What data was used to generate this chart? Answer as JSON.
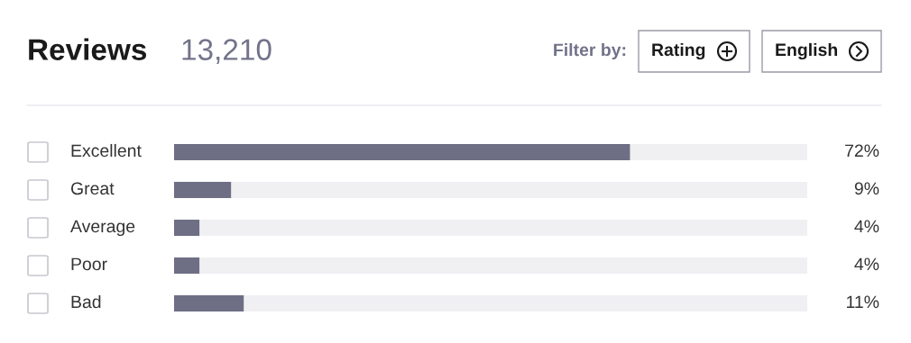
{
  "chart_data": {
    "type": "bar",
    "orientation": "horizontal",
    "title": "Reviews",
    "subtitle": "13,210",
    "annotations": [
      "Filter by:",
      "Rating",
      "English"
    ],
    "categories": [
      "Excellent",
      "Great",
      "Average",
      "Poor",
      "Bad"
    ],
    "values": [
      72,
      9,
      4,
      4,
      11
    ],
    "value_labels": [
      "72%",
      "9%",
      "4%",
      "4%",
      "11%"
    ],
    "color": "#6e6e85",
    "xlim": [
      0,
      100
    ]
  }
}
